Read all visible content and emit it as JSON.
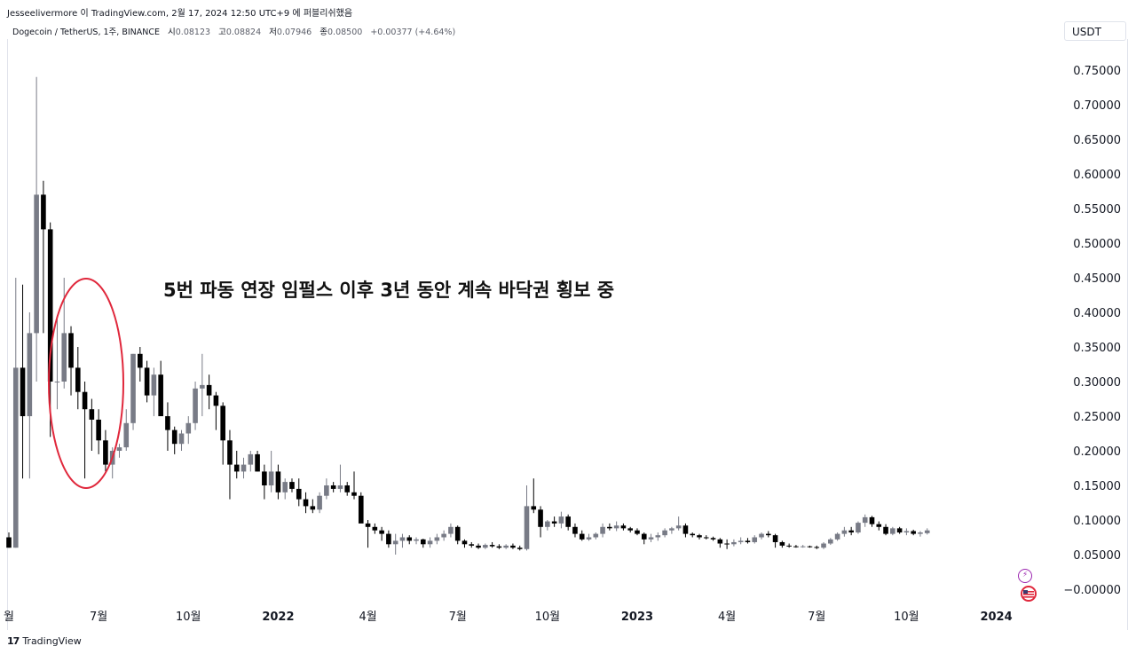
{
  "header": "Jesseelivermore 이 TradingView.com, 2월 17, 2024 12:50 UTC+9 에 퍼블리쉬했음",
  "symbol": {
    "name": "Dogecoin / TetherUS, 1주, BINANCE",
    "o_label": "시",
    "o_value": "0.08123",
    "h_label": "고",
    "h_value": "0.08824",
    "l_label": "저",
    "l_value": "0.07946",
    "c_label": "종",
    "c_value": "0.08500",
    "change": "+0.00377 (+4.64%)"
  },
  "unit": "USDT",
  "annotation": "5번 파동 연장 임펄스 이후 3년 동안 계속 바닥권 횡보 중",
  "footer": {
    "logo": "17",
    "brand": "TradingView"
  },
  "icons": [
    "lightning-icon",
    "us-flag-icon"
  ],
  "colors": {
    "up": "#787b86",
    "down": "#000000",
    "circle": "#e0283c",
    "grid": "#e0e3eb"
  },
  "chart_data": {
    "type": "candlestick",
    "y_ticks": [
      "0.75000",
      "0.70000",
      "0.65000",
      "0.60000",
      "0.55000",
      "0.50000",
      "0.45000",
      "0.40000",
      "0.35000",
      "0.30000",
      "0.25000",
      "0.20000",
      "0.15000",
      "0.10000",
      "0.05000",
      "−0.00000"
    ],
    "y_tick_values": [
      0.75,
      0.7,
      0.65,
      0.6,
      0.55,
      0.5,
      0.45,
      0.4,
      0.35,
      0.3,
      0.25,
      0.2,
      0.15,
      0.1,
      0.05,
      0.0
    ],
    "ylim": [
      -0.018,
      0.8
    ],
    "x_ticks": [
      {
        "label": "월",
        "week": 0
      },
      {
        "label": "7월",
        "week": 13
      },
      {
        "label": "10월",
        "week": 26
      },
      {
        "label": "2022",
        "week": 39,
        "bold": true
      },
      {
        "label": "4월",
        "week": 52
      },
      {
        "label": "7월",
        "week": 65
      },
      {
        "label": "10월",
        "week": 78
      },
      {
        "label": "2023",
        "week": 91,
        "bold": true
      },
      {
        "label": "4월",
        "week": 104
      },
      {
        "label": "7월",
        "week": 117
      },
      {
        "label": "10월",
        "week": 130
      },
      {
        "label": "2024",
        "week": 143,
        "bold": true
      }
    ],
    "candles": [
      [
        0.075,
        0.082,
        0.06,
        0.06
      ],
      [
        0.06,
        0.45,
        0.06,
        0.32
      ],
      [
        0.32,
        0.44,
        0.16,
        0.25
      ],
      [
        0.25,
        0.4,
        0.16,
        0.37
      ],
      [
        0.37,
        0.74,
        0.3,
        0.57
      ],
      [
        0.57,
        0.59,
        0.37,
        0.52
      ],
      [
        0.52,
        0.53,
        0.22,
        0.3
      ],
      [
        0.3,
        0.39,
        0.26,
        0.3
      ],
      [
        0.3,
        0.45,
        0.29,
        0.37
      ],
      [
        0.37,
        0.38,
        0.28,
        0.32
      ],
      [
        0.32,
        0.35,
        0.26,
        0.285
      ],
      [
        0.285,
        0.3,
        0.16,
        0.26
      ],
      [
        0.26,
        0.275,
        0.2,
        0.245
      ],
      [
        0.245,
        0.26,
        0.195,
        0.215
      ],
      [
        0.215,
        0.23,
        0.17,
        0.18
      ],
      [
        0.18,
        0.205,
        0.16,
        0.2
      ],
      [
        0.2,
        0.21,
        0.19,
        0.205
      ],
      [
        0.205,
        0.26,
        0.2,
        0.24
      ],
      [
        0.24,
        0.34,
        0.23,
        0.34
      ],
      [
        0.34,
        0.35,
        0.3,
        0.32
      ],
      [
        0.32,
        0.33,
        0.27,
        0.28
      ],
      [
        0.28,
        0.32,
        0.25,
        0.31
      ],
      [
        0.31,
        0.33,
        0.25,
        0.25
      ],
      [
        0.25,
        0.27,
        0.2,
        0.23
      ],
      [
        0.23,
        0.235,
        0.195,
        0.21
      ],
      [
        0.21,
        0.23,
        0.2,
        0.225
      ],
      [
        0.225,
        0.25,
        0.21,
        0.24
      ],
      [
        0.24,
        0.3,
        0.23,
        0.29
      ],
      [
        0.29,
        0.34,
        0.25,
        0.295
      ],
      [
        0.295,
        0.31,
        0.26,
        0.28
      ],
      [
        0.28,
        0.285,
        0.23,
        0.265
      ],
      [
        0.265,
        0.27,
        0.18,
        0.215
      ],
      [
        0.215,
        0.23,
        0.13,
        0.18
      ],
      [
        0.18,
        0.2,
        0.16,
        0.17
      ],
      [
        0.17,
        0.19,
        0.16,
        0.18
      ],
      [
        0.18,
        0.2,
        0.17,
        0.195
      ],
      [
        0.195,
        0.2,
        0.17,
        0.17
      ],
      [
        0.17,
        0.18,
        0.13,
        0.15
      ],
      [
        0.15,
        0.2,
        0.14,
        0.17
      ],
      [
        0.17,
        0.18,
        0.13,
        0.14
      ],
      [
        0.14,
        0.16,
        0.13,
        0.155
      ],
      [
        0.155,
        0.16,
        0.14,
        0.145
      ],
      [
        0.145,
        0.16,
        0.12,
        0.13
      ],
      [
        0.13,
        0.14,
        0.11,
        0.12
      ],
      [
        0.12,
        0.13,
        0.11,
        0.115
      ],
      [
        0.115,
        0.14,
        0.11,
        0.135
      ],
      [
        0.135,
        0.16,
        0.13,
        0.15
      ],
      [
        0.15,
        0.155,
        0.14,
        0.145
      ],
      [
        0.145,
        0.18,
        0.14,
        0.15
      ],
      [
        0.15,
        0.155,
        0.135,
        0.14
      ],
      [
        0.14,
        0.17,
        0.13,
        0.135
      ],
      [
        0.135,
        0.14,
        0.1,
        0.095
      ],
      [
        0.095,
        0.1,
        0.06,
        0.09
      ],
      [
        0.09,
        0.095,
        0.08,
        0.085
      ],
      [
        0.085,
        0.09,
        0.07,
        0.08
      ],
      [
        0.08,
        0.085,
        0.06,
        0.065
      ],
      [
        0.065,
        0.08,
        0.05,
        0.07
      ],
      [
        0.07,
        0.08,
        0.06,
        0.075
      ],
      [
        0.075,
        0.078,
        0.065,
        0.07
      ],
      [
        0.07,
        0.075,
        0.065,
        0.072
      ],
      [
        0.072,
        0.073,
        0.06,
        0.065
      ],
      [
        0.065,
        0.075,
        0.06,
        0.07
      ],
      [
        0.07,
        0.08,
        0.065,
        0.075
      ],
      [
        0.075,
        0.085,
        0.07,
        0.08
      ],
      [
        0.08,
        0.095,
        0.075,
        0.09
      ],
      [
        0.09,
        0.092,
        0.065,
        0.07
      ],
      [
        0.07,
        0.072,
        0.06,
        0.065
      ],
      [
        0.065,
        0.068,
        0.06,
        0.063
      ],
      [
        0.063,
        0.066,
        0.058,
        0.06
      ],
      [
        0.06,
        0.066,
        0.058,
        0.064
      ],
      [
        0.064,
        0.068,
        0.06,
        0.062
      ],
      [
        0.062,
        0.065,
        0.058,
        0.06
      ],
      [
        0.06,
        0.065,
        0.058,
        0.063
      ],
      [
        0.063,
        0.066,
        0.058,
        0.06
      ],
      [
        0.06,
        0.063,
        0.056,
        0.058
      ],
      [
        0.058,
        0.15,
        0.056,
        0.12
      ],
      [
        0.12,
        0.16,
        0.11,
        0.115
      ],
      [
        0.115,
        0.12,
        0.075,
        0.09
      ],
      [
        0.09,
        0.1,
        0.085,
        0.098
      ],
      [
        0.098,
        0.105,
        0.09,
        0.095
      ],
      [
        0.095,
        0.112,
        0.088,
        0.105
      ],
      [
        0.105,
        0.108,
        0.085,
        0.09
      ],
      [
        0.09,
        0.095,
        0.075,
        0.08
      ],
      [
        0.08,
        0.085,
        0.07,
        0.072
      ],
      [
        0.072,
        0.08,
        0.07,
        0.075
      ],
      [
        0.075,
        0.082,
        0.072,
        0.08
      ],
      [
        0.08,
        0.095,
        0.075,
        0.09
      ],
      [
        0.09,
        0.095,
        0.085,
        0.088
      ],
      [
        0.088,
        0.098,
        0.084,
        0.092
      ],
      [
        0.092,
        0.095,
        0.085,
        0.088
      ],
      [
        0.088,
        0.09,
        0.082,
        0.085
      ],
      [
        0.085,
        0.088,
        0.078,
        0.08
      ],
      [
        0.08,
        0.082,
        0.065,
        0.072
      ],
      [
        0.072,
        0.08,
        0.068,
        0.075
      ],
      [
        0.075,
        0.082,
        0.07,
        0.078
      ],
      [
        0.078,
        0.088,
        0.075,
        0.085
      ],
      [
        0.085,
        0.09,
        0.08,
        0.088
      ],
      [
        0.088,
        0.105,
        0.085,
        0.092
      ],
      [
        0.092,
        0.095,
        0.075,
        0.08
      ],
      [
        0.08,
        0.082,
        0.075,
        0.078
      ],
      [
        0.078,
        0.08,
        0.072,
        0.075
      ],
      [
        0.075,
        0.078,
        0.072,
        0.074
      ],
      [
        0.074,
        0.076,
        0.07,
        0.072
      ],
      [
        0.072,
        0.074,
        0.06,
        0.066
      ],
      [
        0.066,
        0.072,
        0.058,
        0.065
      ],
      [
        0.065,
        0.072,
        0.062,
        0.068
      ],
      [
        0.068,
        0.075,
        0.065,
        0.07
      ],
      [
        0.07,
        0.074,
        0.066,
        0.068
      ],
      [
        0.068,
        0.078,
        0.066,
        0.075
      ],
      [
        0.075,
        0.082,
        0.072,
        0.08
      ],
      [
        0.08,
        0.084,
        0.075,
        0.078
      ],
      [
        0.078,
        0.08,
        0.06,
        0.068
      ],
      [
        0.068,
        0.07,
        0.06,
        0.063
      ],
      [
        0.063,
        0.066,
        0.06,
        0.062
      ],
      [
        0.062,
        0.064,
        0.06,
        0.061
      ],
      [
        0.061,
        0.064,
        0.06,
        0.062
      ],
      [
        0.062,
        0.063,
        0.06,
        0.061
      ],
      [
        0.061,
        0.063,
        0.058,
        0.06
      ],
      [
        0.06,
        0.068,
        0.058,
        0.066
      ],
      [
        0.066,
        0.074,
        0.064,
        0.072
      ],
      [
        0.072,
        0.082,
        0.07,
        0.08
      ],
      [
        0.08,
        0.09,
        0.076,
        0.085
      ],
      [
        0.085,
        0.09,
        0.078,
        0.082
      ],
      [
        0.082,
        0.098,
        0.08,
        0.096
      ],
      [
        0.096,
        0.108,
        0.09,
        0.104
      ],
      [
        0.104,
        0.106,
        0.09,
        0.094
      ],
      [
        0.094,
        0.098,
        0.085,
        0.09
      ],
      [
        0.09,
        0.094,
        0.078,
        0.08
      ],
      [
        0.08,
        0.09,
        0.078,
        0.088
      ],
      [
        0.088,
        0.09,
        0.08,
        0.082
      ],
      [
        0.082,
        0.088,
        0.078,
        0.084
      ],
      [
        0.084,
        0.086,
        0.078,
        0.08
      ],
      [
        0.08,
        0.084,
        0.076,
        0.082
      ],
      [
        0.081,
        0.088,
        0.079,
        0.085
      ]
    ]
  }
}
